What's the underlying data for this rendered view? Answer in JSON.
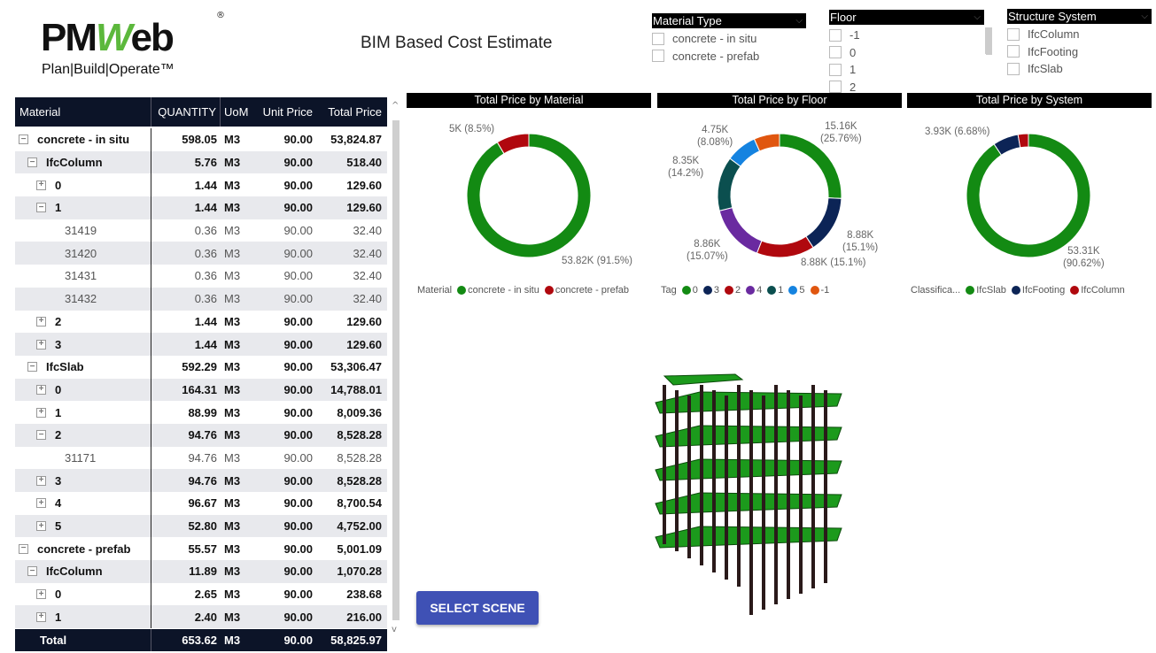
{
  "logo": {
    "text": "PMWeb",
    "tagline": "Plan|Build|Operate™",
    "accent": "#5cb83c"
  },
  "page_title": "BIM Based Cost Estimate",
  "slicers": [
    {
      "title": "Material Type",
      "items": [
        "concrete - in situ",
        "concrete - prefab"
      ]
    },
    {
      "title": "Floor",
      "items": [
        "-1",
        "0",
        "1",
        "2"
      ]
    },
    {
      "title": "Structure System",
      "items": [
        "IfcColumn",
        "IfcFooting",
        "IfcSlab"
      ]
    }
  ],
  "table": {
    "columns": [
      "Material",
      "QUANTITY",
      "UoM",
      "Unit Price",
      "Total Price"
    ],
    "rows": [
      {
        "level": 0,
        "icon": "minus",
        "label": "concrete - in situ",
        "qty": "598.05",
        "uom": "M3",
        "unit": "90.00",
        "total": "53,824.87",
        "bold": true
      },
      {
        "level": 1,
        "icon": "minus",
        "label": "IfcColumn",
        "qty": "5.76",
        "uom": "M3",
        "unit": "90.00",
        "total": "518.40",
        "bold": true
      },
      {
        "level": 2,
        "icon": "plus",
        "label": "0",
        "qty": "1.44",
        "uom": "M3",
        "unit": "90.00",
        "total": "129.60",
        "bold": true
      },
      {
        "level": 2,
        "icon": "minus",
        "label": "1",
        "qty": "1.44",
        "uom": "M3",
        "unit": "90.00",
        "total": "129.60",
        "bold": true
      },
      {
        "level": 3,
        "icon": "",
        "label": "31419",
        "qty": "0.36",
        "uom": "M3",
        "unit": "90.00",
        "total": "32.40",
        "bold": false
      },
      {
        "level": 3,
        "icon": "",
        "label": "31420",
        "qty": "0.36",
        "uom": "M3",
        "unit": "90.00",
        "total": "32.40",
        "bold": false
      },
      {
        "level": 3,
        "icon": "",
        "label": "31431",
        "qty": "0.36",
        "uom": "M3",
        "unit": "90.00",
        "total": "32.40",
        "bold": false
      },
      {
        "level": 3,
        "icon": "",
        "label": "31432",
        "qty": "0.36",
        "uom": "M3",
        "unit": "90.00",
        "total": "32.40",
        "bold": false
      },
      {
        "level": 2,
        "icon": "plus",
        "label": "2",
        "qty": "1.44",
        "uom": "M3",
        "unit": "90.00",
        "total": "129.60",
        "bold": true
      },
      {
        "level": 2,
        "icon": "plus",
        "label": "3",
        "qty": "1.44",
        "uom": "M3",
        "unit": "90.00",
        "total": "129.60",
        "bold": true
      },
      {
        "level": 1,
        "icon": "minus",
        "label": "IfcSlab",
        "qty": "592.29",
        "uom": "M3",
        "unit": "90.00",
        "total": "53,306.47",
        "bold": true
      },
      {
        "level": 2,
        "icon": "plus",
        "label": "0",
        "qty": "164.31",
        "uom": "M3",
        "unit": "90.00",
        "total": "14,788.01",
        "bold": true
      },
      {
        "level": 2,
        "icon": "plus",
        "label": "1",
        "qty": "88.99",
        "uom": "M3",
        "unit": "90.00",
        "total": "8,009.36",
        "bold": true
      },
      {
        "level": 2,
        "icon": "minus",
        "label": "2",
        "qty": "94.76",
        "uom": "M3",
        "unit": "90.00",
        "total": "8,528.28",
        "bold": true
      },
      {
        "level": 3,
        "icon": "",
        "label": "31171",
        "qty": "94.76",
        "uom": "M3",
        "unit": "90.00",
        "total": "8,528.28",
        "bold": false
      },
      {
        "level": 2,
        "icon": "plus",
        "label": "3",
        "qty": "94.76",
        "uom": "M3",
        "unit": "90.00",
        "total": "8,528.28",
        "bold": true
      },
      {
        "level": 2,
        "icon": "plus",
        "label": "4",
        "qty": "96.67",
        "uom": "M3",
        "unit": "90.00",
        "total": "8,700.54",
        "bold": true
      },
      {
        "level": 2,
        "icon": "plus",
        "label": "5",
        "qty": "52.80",
        "uom": "M3",
        "unit": "90.00",
        "total": "4,752.00",
        "bold": true
      },
      {
        "level": 0,
        "icon": "minus",
        "label": "concrete - prefab",
        "qty": "55.57",
        "uom": "M3",
        "unit": "90.00",
        "total": "5,001.09",
        "bold": true
      },
      {
        "level": 1,
        "icon": "minus",
        "label": "IfcColumn",
        "qty": "11.89",
        "uom": "M3",
        "unit": "90.00",
        "total": "1,070.28",
        "bold": true
      },
      {
        "level": 2,
        "icon": "plus",
        "label": "0",
        "qty": "2.65",
        "uom": "M3",
        "unit": "90.00",
        "total": "238.68",
        "bold": true
      },
      {
        "level": 2,
        "icon": "plus",
        "label": "1",
        "qty": "2.40",
        "uom": "M3",
        "unit": "90.00",
        "total": "216.00",
        "bold": true
      }
    ],
    "total": {
      "label": "Total",
      "qty": "653.62",
      "uom": "M3",
      "unit": "90.00",
      "total": "58,825.97"
    }
  },
  "chart_data": [
    {
      "type": "pie",
      "donut": true,
      "title": "Total Price by Material",
      "legend_title": "Material",
      "legend_position": "bottom-left",
      "slices": [
        {
          "name": "concrete - in situ",
          "value": 53.82,
          "percent": 91.5,
          "label": "53.82K (91.5%)",
          "color": "#138a13"
        },
        {
          "name": "concrete - prefab",
          "value": 5.0,
          "percent": 8.5,
          "label": "5K (8.5%)",
          "color": "#b0080e"
        }
      ]
    },
    {
      "type": "pie",
      "donut": true,
      "title": "Total Price by Floor",
      "legend_title": "Tag",
      "legend_position": "bottom-left",
      "slices": [
        {
          "name": "0",
          "value": 15.16,
          "percent": 25.76,
          "label": [
            "15.16K",
            "(25.76%)"
          ],
          "color": "#138a13"
        },
        {
          "name": "3",
          "value": 8.88,
          "percent": 15.1,
          "label": [
            "8.88K",
            "(15.1%)"
          ],
          "color": "#0c2456"
        },
        {
          "name": "2",
          "value": 8.88,
          "percent": 15.1,
          "label": [
            "8.88K (15.1%)"
          ],
          "color": "#b0080e"
        },
        {
          "name": "4",
          "value": 8.86,
          "percent": 15.07,
          "label": [
            "8.86K",
            "(15.07%)"
          ],
          "color": "#6a2aa0"
        },
        {
          "name": "1",
          "value": 8.35,
          "percent": 14.2,
          "label": [
            "8.35K",
            "(14.2%)"
          ],
          "color": "#0b4f4f"
        },
        {
          "name": "5",
          "value": 4.75,
          "percent": 8.08,
          "label": [
            "4.75K",
            "(8.08%)"
          ],
          "color": "#1583e0"
        },
        {
          "name": "-1",
          "value": 3.93,
          "percent": 6.69,
          "color": "#e0560f"
        }
      ]
    },
    {
      "type": "pie",
      "donut": true,
      "title": "Total Price by System",
      "legend_title": "Classifica...",
      "legend_position": "bottom-left",
      "slices": [
        {
          "name": "IfcSlab",
          "value": 53.31,
          "percent": 90.62,
          "label": [
            "53.31K",
            "(90.62%)"
          ],
          "color": "#138a13"
        },
        {
          "name": "IfcFooting",
          "value": 3.93,
          "percent": 6.68,
          "label": [
            "3.93K (6.68%)"
          ],
          "color": "#0c2456"
        },
        {
          "name": "IfcColumn",
          "value": 1.59,
          "percent": 2.7,
          "color": "#b0080e"
        }
      ]
    }
  ],
  "button": {
    "label": "SELECT SCENE",
    "color": "#3f51b5"
  }
}
